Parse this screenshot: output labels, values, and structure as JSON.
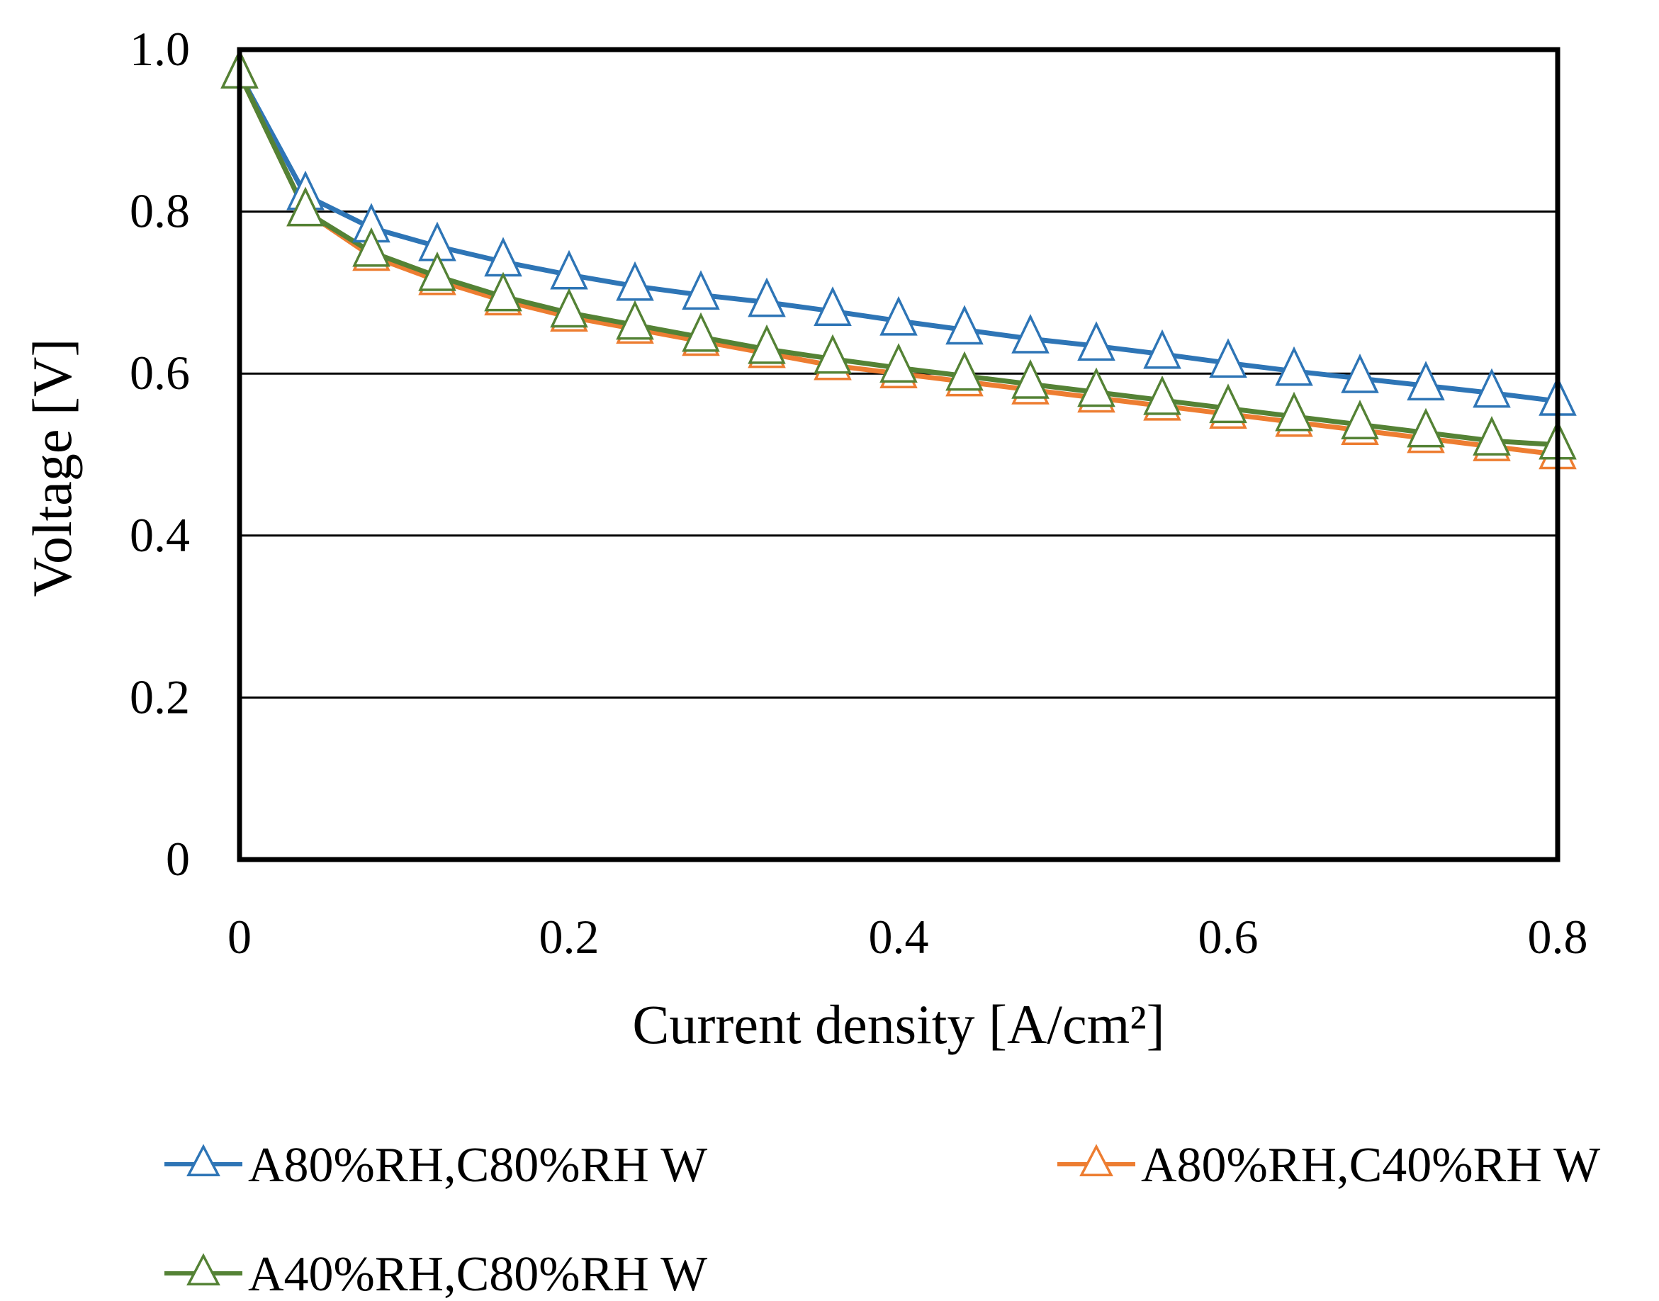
{
  "chart_data": {
    "type": "line",
    "title": "",
    "xlabel": "Current density [A/cm²]",
    "ylabel": "Voltage [V]",
    "xlim": [
      0,
      0.8
    ],
    "ylim": [
      0,
      1.0
    ],
    "x_ticks": [
      "0",
      "0.2",
      "0.4",
      "0.6",
      "0.8"
    ],
    "y_ticks": [
      "0",
      "0.2",
      "0.4",
      "0.6",
      "0.8",
      "1.0"
    ],
    "grid": "horizontal",
    "legend_position": "bottom",
    "x": [
      0,
      0.04,
      0.08,
      0.12,
      0.16,
      0.2,
      0.24,
      0.28,
      0.32,
      0.36,
      0.4,
      0.44,
      0.48,
      0.52,
      0.56,
      0.6,
      0.64,
      0.68,
      0.72,
      0.76,
      0.8
    ],
    "series": [
      {
        "name": "A80%RH,C80%RH W",
        "color": "#2E75B6",
        "marker": "triangle-open",
        "values": [
          0.97,
          0.82,
          0.78,
          0.757,
          0.738,
          0.722,
          0.708,
          0.697,
          0.688,
          0.677,
          0.665,
          0.654,
          0.643,
          0.634,
          0.624,
          0.613,
          0.603,
          0.594,
          0.585,
          0.576,
          0.566
        ]
      },
      {
        "name": "A80%RH,C40%RH W",
        "color": "#ED7D31",
        "marker": "triangle-open",
        "values": [
          0.97,
          0.8,
          0.745,
          0.715,
          0.69,
          0.67,
          0.655,
          0.64,
          0.625,
          0.61,
          0.6,
          0.59,
          0.58,
          0.57,
          0.56,
          0.55,
          0.54,
          0.53,
          0.52,
          0.51,
          0.5
        ]
      },
      {
        "name": "A40%RH,C80%RH W",
        "color": "#548235",
        "marker": "triangle-open",
        "values": [
          0.97,
          0.8,
          0.75,
          0.72,
          0.695,
          0.675,
          0.66,
          0.645,
          0.63,
          0.618,
          0.607,
          0.597,
          0.587,
          0.577,
          0.567,
          0.557,
          0.547,
          0.537,
          0.527,
          0.517,
          0.512
        ]
      }
    ]
  }
}
